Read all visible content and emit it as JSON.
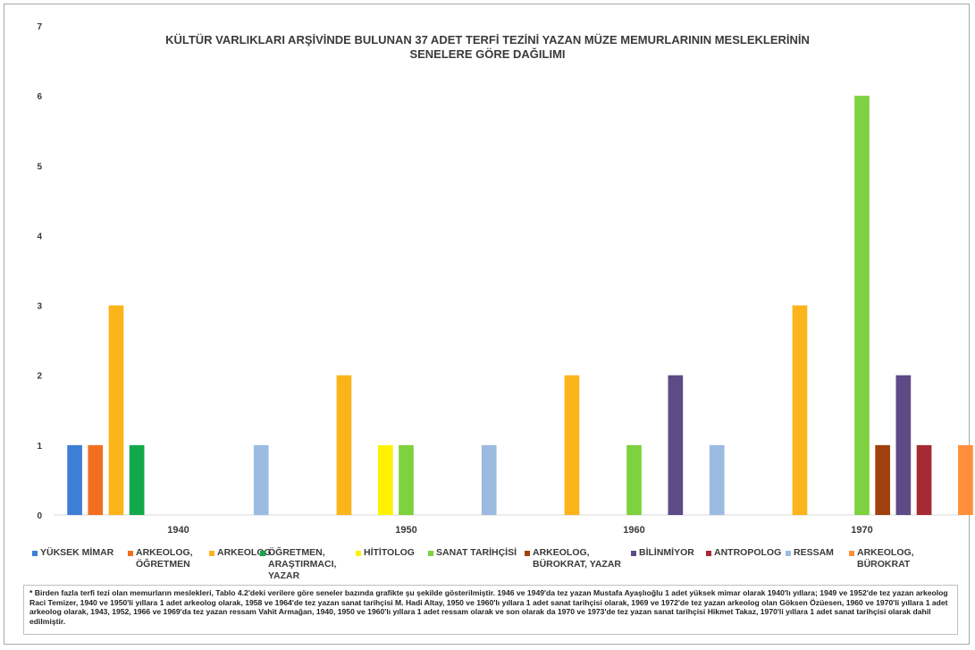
{
  "chart_data": {
    "type": "bar",
    "title": "KÜLTÜR VARLIKLARI ARŞİVİNDE BULUNAN 37 ADET TERFİ TEZİNİ YAZAN MÜZE MEMURLARININ MESLEKLERİNİN",
    "subtitle": "SENELERE GÖRE DAĞILIMI",
    "categories": [
      "1940",
      "1950",
      "1960",
      "1970"
    ],
    "ylim": [
      0,
      7
    ],
    "yticks": [
      0,
      1,
      2,
      3,
      4,
      5,
      6,
      7
    ],
    "grid": false,
    "legend_position": "bottom",
    "series": [
      {
        "name": "YÜKSEK MİMAR",
        "color": "#3e7fd6",
        "values": [
          1,
          0,
          0,
          0
        ]
      },
      {
        "name": "ARKEOLOG,\nÖĞRETMEN",
        "color": "#f26f21",
        "values": [
          1,
          0,
          0,
          0
        ]
      },
      {
        "name": "ARKEOLOG",
        "color": "#fbb41a",
        "values": [
          3,
          2,
          2,
          3
        ]
      },
      {
        "name": "ÖĞRETMEN,\nARAŞTIRMACI,\nYAZAR",
        "color": "#12a84b",
        "values": [
          1,
          0,
          0,
          0
        ]
      },
      {
        "name": "HİTİTOLOG",
        "color": "#fff200",
        "values": [
          0,
          1,
          0,
          0
        ]
      },
      {
        "name": "SANAT TARİHÇİSİ",
        "color": "#7ed13f",
        "values": [
          0,
          1,
          1,
          6
        ]
      },
      {
        "name": "ARKEOLOG,\nBÜROKRAT, YAZAR",
        "color": "#a0410d",
        "values": [
          0,
          0,
          0,
          1
        ]
      },
      {
        "name": "BİLİNMİYOR",
        "color": "#5d4a86",
        "values": [
          0,
          0,
          2,
          2
        ]
      },
      {
        "name": "ANTROPOLOG",
        "color": "#a52a34",
        "values": [
          0,
          0,
          0,
          1
        ]
      },
      {
        "name": "RESSAM",
        "color": "#9bbbe1",
        "values": [
          1,
          1,
          1,
          0
        ]
      },
      {
        "name": "ARKEOLOG, BÜROKRAT",
        "color": "#ff8f3a",
        "values": [
          0,
          0,
          0,
          1
        ]
      }
    ]
  },
  "footnote": "* Birden fazla terfi tezi olan memurların meslekleri, Tablo 4.2'deki verilere göre seneler bazında grafikte şu şekilde gösterilmiştir. 1946 ve 1949'da tez yazan Mustafa Ayaşlıoğlu 1 adet yüksek mimar olarak 1940'lı yıllara; 1949 ve 1952'de tez yazan arkeolog Raci Temizer, 1940 ve 1950'li yıllara 1 adet arkeolog olarak, 1958 ve 1964'de tez yazan sanat tarihçisi M. Hadi Altay, 1950 ve 1960'lı yıllara 1 adet sanat tarihçisi olarak, 1969 ve 1972'de tez yazan arkeolog olan Göksen Özüesen, 1960 ve 1970'li yıllara 1 adet arkeolog olarak, 1943, 1952, 1966 ve 1969'da tez yazan ressam Vahit Armağan, 1940, 1950 ve 1960'lı yıllara 1 adet ressam olarak ve son olarak da 1970 ve 1973'de tez yazan sanat tarihçisi Hikmet Takaz, 1970'li yıllara 1 adet sanat tarihçisi olarak dahil edilmiştir."
}
